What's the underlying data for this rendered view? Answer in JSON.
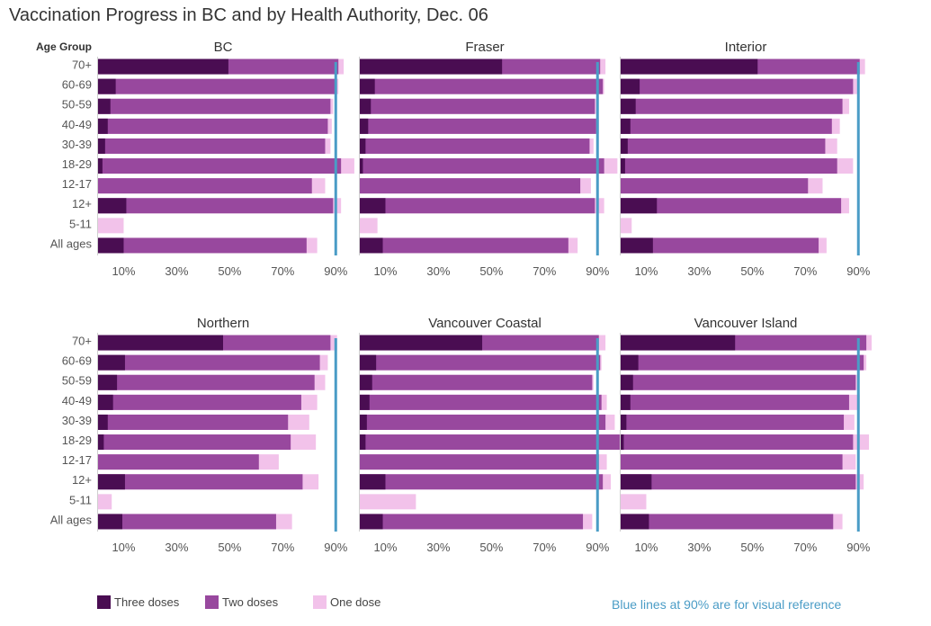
{
  "title": "Vaccination Progress in BC and by Health Authority, Dec. 06",
  "chart_data": {
    "type": "bar",
    "orientation": "horizontal",
    "stacked": true,
    "row_header": "Age Group",
    "categories": [
      "70+",
      "60-69",
      "50-59",
      "40-49",
      "30-39",
      "18-29",
      "12-17",
      "12+",
      "5-11",
      "All ages"
    ],
    "x_range": [
      0,
      95
    ],
    "x_ticks": [
      "10%",
      "30%",
      "50%",
      "70%",
      "90%"
    ],
    "x_tick_values": [
      10,
      30,
      50,
      70,
      90
    ],
    "reference_line": 90,
    "series_names": [
      "Three doses",
      "Two doses",
      "One dose"
    ],
    "colors": {
      "three": "#4a0d52",
      "two": "#98489e",
      "one": "#f2c2ea",
      "reference": "#4a9cc6"
    },
    "panels": [
      {
        "name": "BC",
        "three": [
          49.5,
          7,
          5,
          4,
          3,
          2,
          0.3,
          11,
          0,
          10
        ],
        "two": [
          91,
          90,
          88,
          87,
          86,
          92,
          81,
          89,
          0,
          79
        ],
        "one": [
          93,
          91,
          89,
          88.5,
          88,
          97,
          86,
          92,
          10,
          83
        ]
      },
      {
        "name": "Fraser",
        "three": [
          54,
          6,
          4.5,
          3.5,
          2.5,
          1.5,
          0.3,
          10,
          0,
          9
        ],
        "two": [
          91,
          92,
          89,
          89.5,
          87,
          92.5,
          83.5,
          89,
          0,
          79
        ],
        "one": [
          93,
          92.5,
          89.5,
          90.5,
          88.5,
          97.5,
          87.5,
          92.5,
          7,
          82.5
        ]
      },
      {
        "name": "Interior",
        "three": [
          52,
          7.5,
          6,
          4,
          3,
          2,
          0.3,
          14,
          0,
          12.5
        ],
        "two": [
          90.5,
          88,
          84,
          80,
          77.5,
          82,
          71,
          83.5,
          0,
          75
        ],
        "one": [
          92.5,
          89.5,
          86.5,
          83,
          82,
          88,
          76.5,
          86.5,
          4.5,
          78
        ]
      },
      {
        "name": "Northern",
        "three": [
          47.5,
          10.5,
          7.5,
          6,
          4,
          2.5,
          0.3,
          10.5,
          0,
          9.5
        ],
        "two": [
          88,
          84,
          82,
          77,
          72,
          73,
          61,
          77.5,
          0,
          67.5
        ],
        "one": [
          90.5,
          87,
          86,
          83,
          80,
          82.5,
          68.5,
          83.5,
          5.5,
          73.5
        ]
      },
      {
        "name": "Vancouver Coastal",
        "three": [
          46.5,
          6.5,
          5,
          4,
          3,
          2.5,
          0.3,
          10,
          0,
          9
        ],
        "two": [
          90.5,
          91,
          88,
          91.5,
          93,
          100,
          90.5,
          92,
          0,
          84.5
        ],
        "one": [
          93,
          91.5,
          88.5,
          93.5,
          96.5,
          100,
          93.5,
          95,
          21.5,
          88
        ]
      },
      {
        "name": "Vancouver Island",
        "three": [
          43.5,
          7,
          5,
          4,
          2.5,
          1.5,
          0.3,
          12,
          0,
          11
        ],
        "two": [
          93,
          92,
          89,
          86.5,
          84.5,
          88,
          84,
          89,
          0,
          80.5
        ],
        "one": [
          95,
          93,
          89.5,
          90.5,
          88.5,
          94,
          89,
          92,
          10,
          84
        ]
      }
    ]
  },
  "legend": {
    "items": [
      {
        "label": "Three doses",
        "color": "#4a0d52"
      },
      {
        "label": "Two doses",
        "color": "#98489e"
      },
      {
        "label": "One dose",
        "color": "#f2c2ea"
      }
    ]
  },
  "reference_note": "Blue lines at 90% are for visual reference"
}
